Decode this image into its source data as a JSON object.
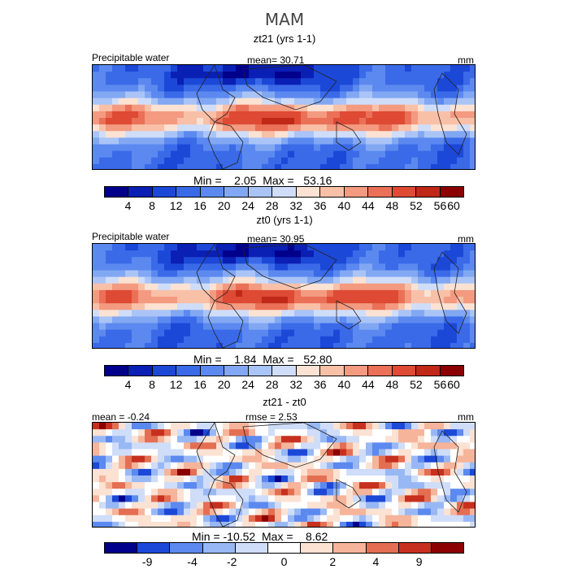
{
  "title": "MAM",
  "colors": {
    "abs_scale": [
      "#00008b",
      "#0a1fb4",
      "#1c48d8",
      "#3a6ae8",
      "#5b89ef",
      "#82a8f3",
      "#aac4f7",
      "#cfddf9",
      "#fbe2d3",
      "#f9c0a8",
      "#f39a80",
      "#ea7057",
      "#de4a34",
      "#c02818",
      "#8b0000"
    ],
    "diff_scale": [
      "#00008b",
      "#1c48d8",
      "#5b89ef",
      "#98b8f5",
      "#cfddf9",
      "#ffffff",
      "#fbe2d3",
      "#f6b49a",
      "#e46e52",
      "#c7301e",
      "#8b0000"
    ],
    "coast": "#222222"
  },
  "panels": [
    {
      "title": "zt21 (yrs 1-1)",
      "left_label": "Precipitable water",
      "center_label": "mean=   30.71",
      "units": "mm",
      "stats": "Min =    2.05  Max =   53.16",
      "ticks": [
        "4",
        "8",
        "12",
        "16",
        "20",
        "24",
        "28",
        "32",
        "36",
        "40",
        "44",
        "48",
        "52",
        "56",
        "60"
      ]
    },
    {
      "title": "zt0 (yrs 1-1)",
      "left_label": "Precipitable water",
      "center_label": "mean=   30.95",
      "units": "mm",
      "stats": "Min =    1.84  Max =   52.80",
      "ticks": [
        "4",
        "8",
        "12",
        "16",
        "20",
        "24",
        "28",
        "32",
        "36",
        "40",
        "44",
        "48",
        "52",
        "56",
        "60"
      ]
    },
    {
      "title": "zt21 - zt0",
      "left_label": "mean =   -0.24",
      "center_label": "rmse =    2.53",
      "units": "mm",
      "stats": "Min = -10.52  Max =    8.62",
      "ticks": [
        "-9",
        "-4",
        "-2",
        "0",
        "2",
        "4",
        "9"
      ]
    }
  ],
  "chart_data": [
    {
      "type": "heatmap",
      "title": "zt21 (yrs 1-1)",
      "variable": "Precipitable water",
      "units": "mm",
      "mean": 30.71,
      "min": 2.05,
      "max": 53.16,
      "colorbar_ticks": [
        4,
        8,
        12,
        16,
        20,
        24,
        28,
        32,
        36,
        40,
        44,
        48,
        52,
        56,
        60
      ]
    },
    {
      "type": "heatmap",
      "title": "zt0 (yrs 1-1)",
      "variable": "Precipitable water",
      "units": "mm",
      "mean": 30.95,
      "min": 1.84,
      "max": 52.8,
      "colorbar_ticks": [
        4,
        8,
        12,
        16,
        20,
        24,
        28,
        32,
        36,
        40,
        44,
        48,
        52,
        56,
        60
      ]
    },
    {
      "type": "heatmap",
      "title": "zt21 - zt0",
      "units": "mm",
      "mean": -0.24,
      "rmse": 2.53,
      "min": -10.52,
      "max": 8.62,
      "colorbar_ticks": [
        -9,
        -4,
        -2,
        0,
        2,
        4,
        9
      ]
    }
  ]
}
